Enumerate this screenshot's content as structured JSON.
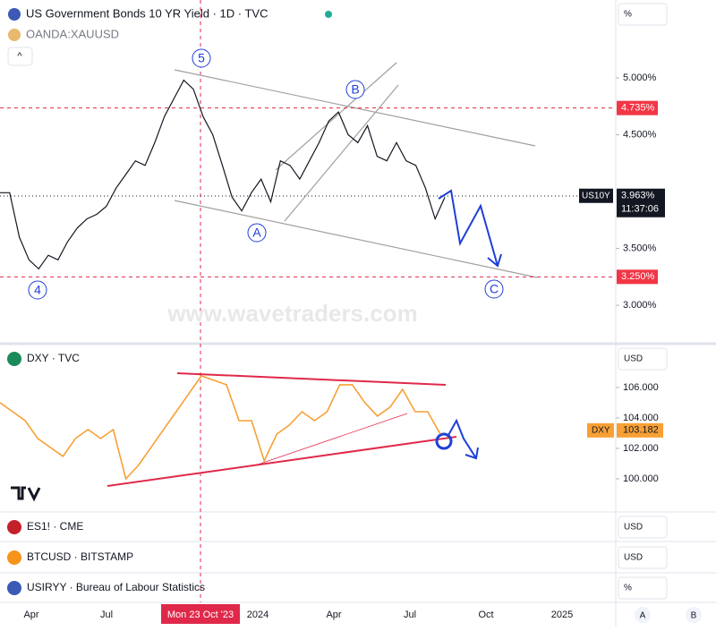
{
  "ui": {
    "title": "US Government Bonds 10 YR Yield · 1D · TVC",
    "overlay": "OANDA:XAUUSD",
    "watermark": "www.wavetraders.com",
    "scale_modes": [
      "%",
      "USD",
      "USD",
      "USD",
      "%"
    ],
    "bottom_buttons": [
      "A",
      "B"
    ],
    "waves": [
      "5",
      "B",
      "A",
      "4",
      "C"
    ],
    "panes": [
      "DXY · TVC",
      "ES1! · CME",
      "BTCUSD · BITSTAMP",
      "USIRYY · Bureau of Labour Statistics"
    ],
    "symbol_tags": [
      "US10Y",
      "DXY"
    ],
    "countdown": "11:37:06",
    "xticks": [
      "Apr",
      "Jul",
      "Mon 23 Oct '23",
      "2024",
      "Apr",
      "Jul",
      "Oct",
      "2025"
    ]
  },
  "chart_data": [
    {
      "type": "line",
      "name": "US10Y",
      "color": "#131722",
      "values": [
        3.99,
        3.99,
        3.6,
        3.4,
        3.32,
        3.44,
        3.4,
        3.56,
        3.68,
        3.76,
        3.8,
        3.87,
        4.03,
        4.15,
        4.27,
        4.23,
        4.43,
        4.66,
        4.82,
        4.98,
        4.9,
        4.66,
        4.5,
        4.23,
        3.95,
        3.83,
        3.99,
        4.11,
        3.91,
        4.27,
        4.23,
        4.11,
        4.27,
        4.43,
        4.62,
        4.7,
        4.5,
        4.43,
        4.58,
        4.31,
        4.27,
        4.43,
        4.27,
        4.23,
        4.03,
        3.76,
        3.95
      ],
      "ylim": [
        2.67,
        5.685
      ],
      "yticks": [
        {
          "value": 5,
          "label": "5.000%"
        },
        {
          "value": 4.5,
          "label": "4.500%"
        },
        {
          "value": 3.5,
          "label": "3.500%"
        },
        {
          "value": 3,
          "label": "3.000%"
        }
      ],
      "levels": [
        {
          "value": 4.735,
          "label": "4.735%"
        },
        {
          "value": 3.25,
          "label": "3.250%"
        }
      ],
      "last": {
        "value": 3.963,
        "label": "3.963%"
      }
    },
    {
      "type": "line",
      "name": "DXY",
      "color": "#f7a035",
      "values": [
        105.0,
        104.41,
        103.82,
        102.65,
        102.06,
        101.47,
        102.65,
        103.24,
        102.65,
        103.24,
        100.0,
        100.88,
        102.06,
        103.24,
        104.41,
        105.59,
        106.76,
        106.47,
        106.18,
        103.82,
        103.82,
        101.18,
        102.94,
        103.53,
        104.41,
        103.82,
        104.41,
        106.18,
        106.18,
        105.0,
        104.12,
        104.71,
        105.88,
        104.41,
        104.41,
        102.94
      ],
      "ylim": [
        97.82,
        108.76
      ],
      "yticks": [
        {
          "value": 106,
          "label": "106.000"
        },
        {
          "value": 104,
          "label": "104.000"
        },
        {
          "value": 102,
          "label": "102.000"
        },
        {
          "value": 100,
          "label": "100.000"
        }
      ],
      "last": 103.182
    }
  ]
}
